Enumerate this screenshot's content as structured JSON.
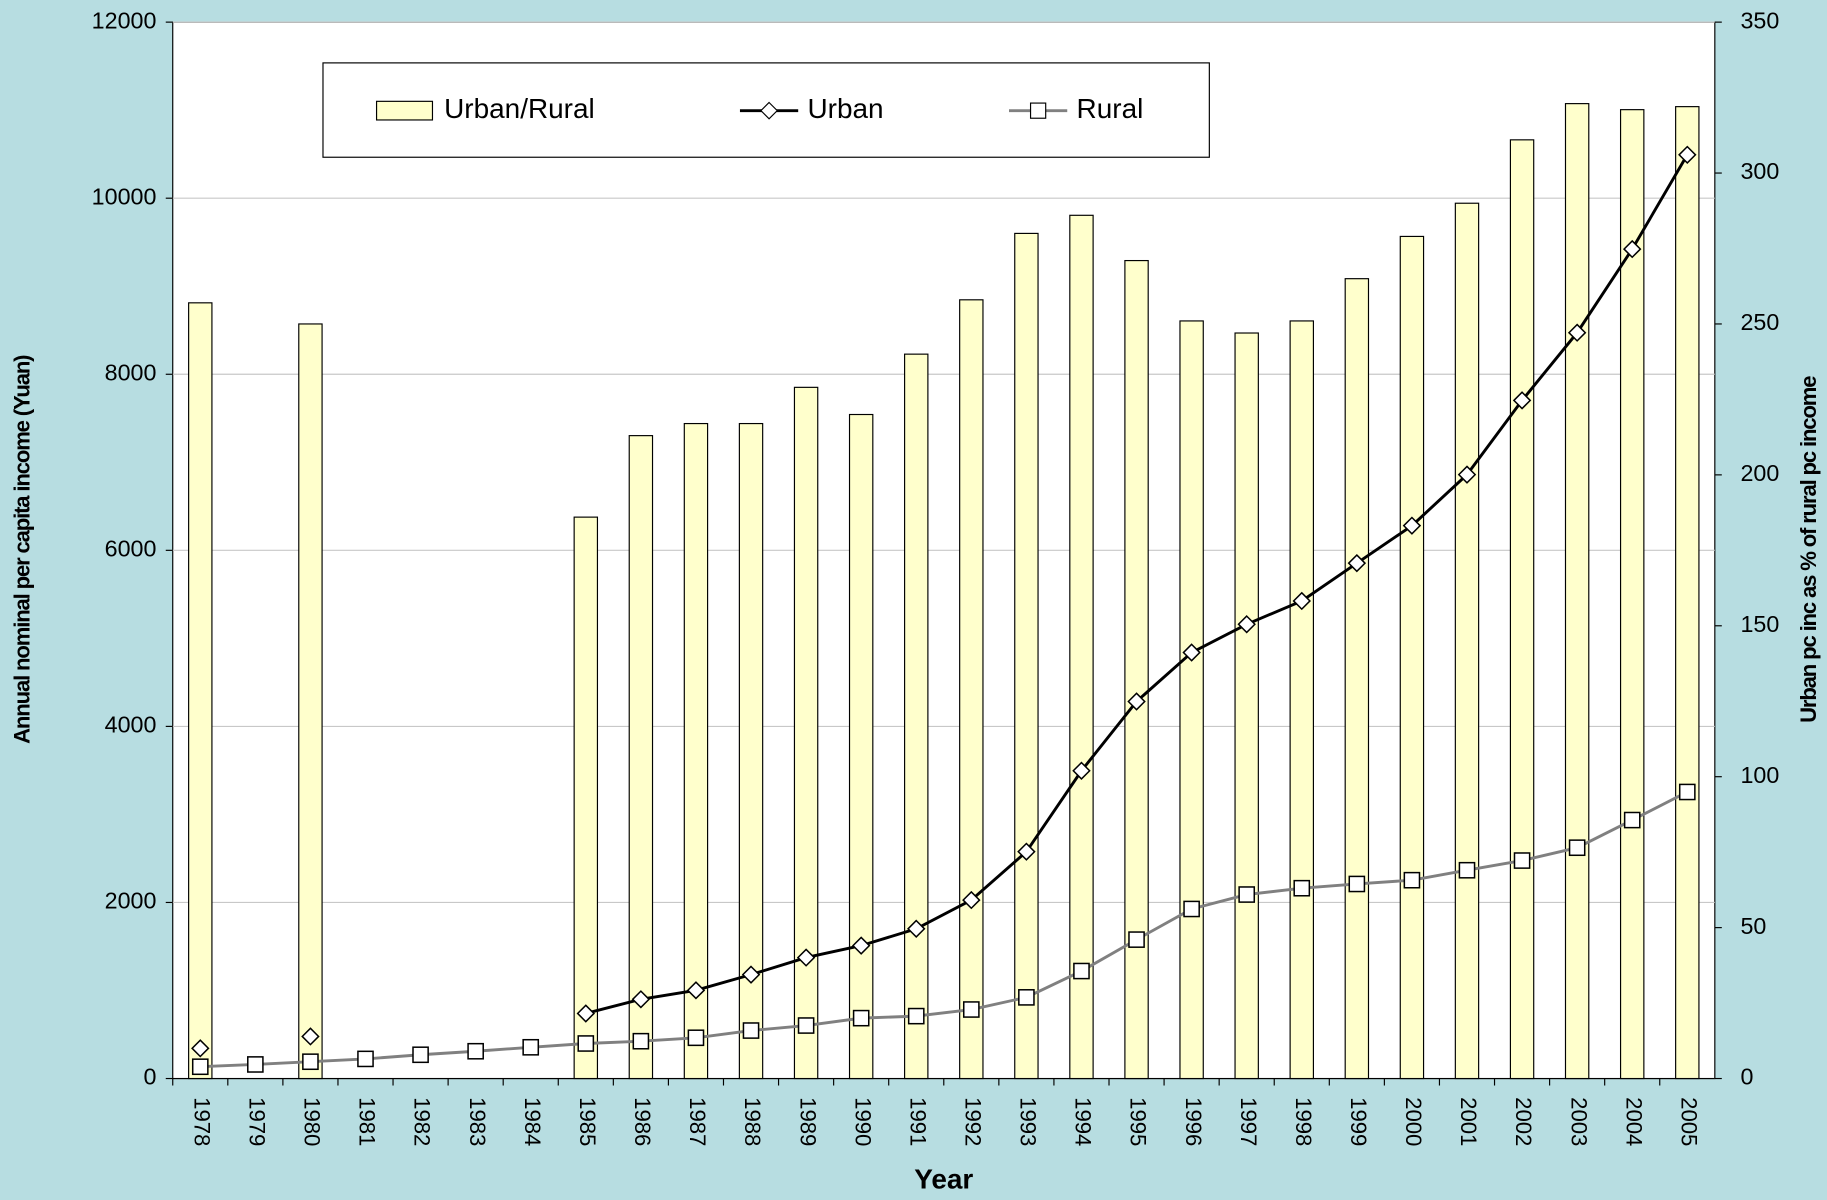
{
  "chart_data": {
    "type": "bar_line",
    "x_label": "Year",
    "y_label": "Annual nominal per capita income (Yuan)",
    "y2_label": "Urban pc inc as % of rural pc income",
    "categories": [
      "1978",
      "1979",
      "1980",
      "1981",
      "1982",
      "1983",
      "1984",
      "1985",
      "1986",
      "1987",
      "1988",
      "1989",
      "1990",
      "1991",
      "1992",
      "1993",
      "1994",
      "1995",
      "1996",
      "1997",
      "1998",
      "1999",
      "2000",
      "2001",
      "2002",
      "2003",
      "2004",
      "2005"
    ],
    "series": [
      {
        "name": "Urban/Rural",
        "type": "bar",
        "axis": "y2",
        "color": "#ffffcc",
        "values": [
          257,
          null,
          250,
          null,
          null,
          null,
          null,
          186,
          213,
          217,
          217,
          229,
          220,
          240,
          258,
          280,
          286,
          271,
          251,
          247,
          251,
          265,
          279,
          290,
          311,
          323,
          321,
          322
        ]
      },
      {
        "name": "Urban",
        "type": "line",
        "axis": "y",
        "color": "#000000",
        "marker": "diamond",
        "values": [
          343,
          null,
          478,
          null,
          null,
          null,
          null,
          739,
          900,
          1002,
          1180,
          1374,
          1510,
          1701,
          2027,
          2577,
          3496,
          4283,
          4839,
          5160,
          5425,
          5854,
          6280,
          6860,
          7703,
          8472,
          9422,
          10493
        ]
      },
      {
        "name": "Rural",
        "type": "line",
        "axis": "y",
        "color": "#808080",
        "marker": "square",
        "values": [
          134,
          160,
          191,
          223,
          270,
          310,
          355,
          398,
          424,
          463,
          545,
          602,
          686,
          709,
          784,
          922,
          1221,
          1578,
          1926,
          2090,
          2162,
          2210,
          2253,
          2366,
          2476,
          2622,
          2936,
          3255
        ]
      }
    ],
    "ylim": [
      0,
      12000
    ],
    "yticks": [
      0,
      2000,
      4000,
      6000,
      8000,
      10000,
      12000
    ],
    "y2lim": [
      0,
      350
    ],
    "y2ticks": [
      0,
      50,
      100,
      150,
      200,
      250,
      300,
      350
    ],
    "grid": true,
    "legend": "top"
  }
}
